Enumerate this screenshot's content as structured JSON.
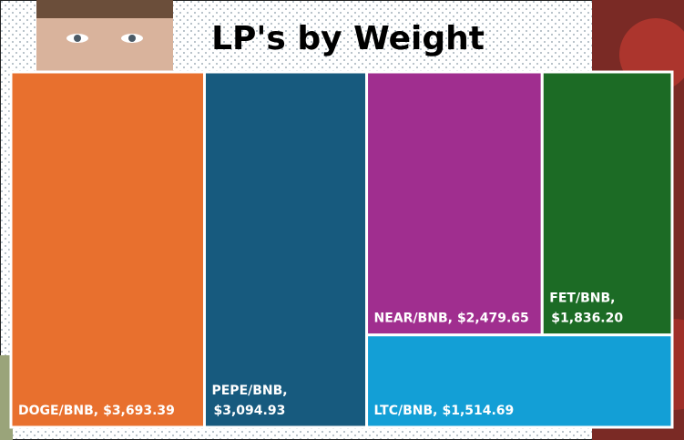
{
  "chart_data": {
    "type": "treemap",
    "title": "LP's by Weight",
    "categories": [
      "DOGE/BNB,",
      "PEPE/BNB,",
      "NEAR/BNB,",
      "FET/BNB,",
      "LTC/BNB,"
    ],
    "values": [
      3693.39,
      3094.93,
      2479.65,
      1836.2,
      1514.69
    ],
    "value_labels": [
      "$3,693.39",
      "$3,094.93",
      "$2,479.65",
      "$1,836.20",
      "$1,514.69"
    ],
    "colors": [
      "#e8702e",
      "#175a7e",
      "#a02e8f",
      "#1c6b25",
      "#139fd6"
    ]
  }
}
